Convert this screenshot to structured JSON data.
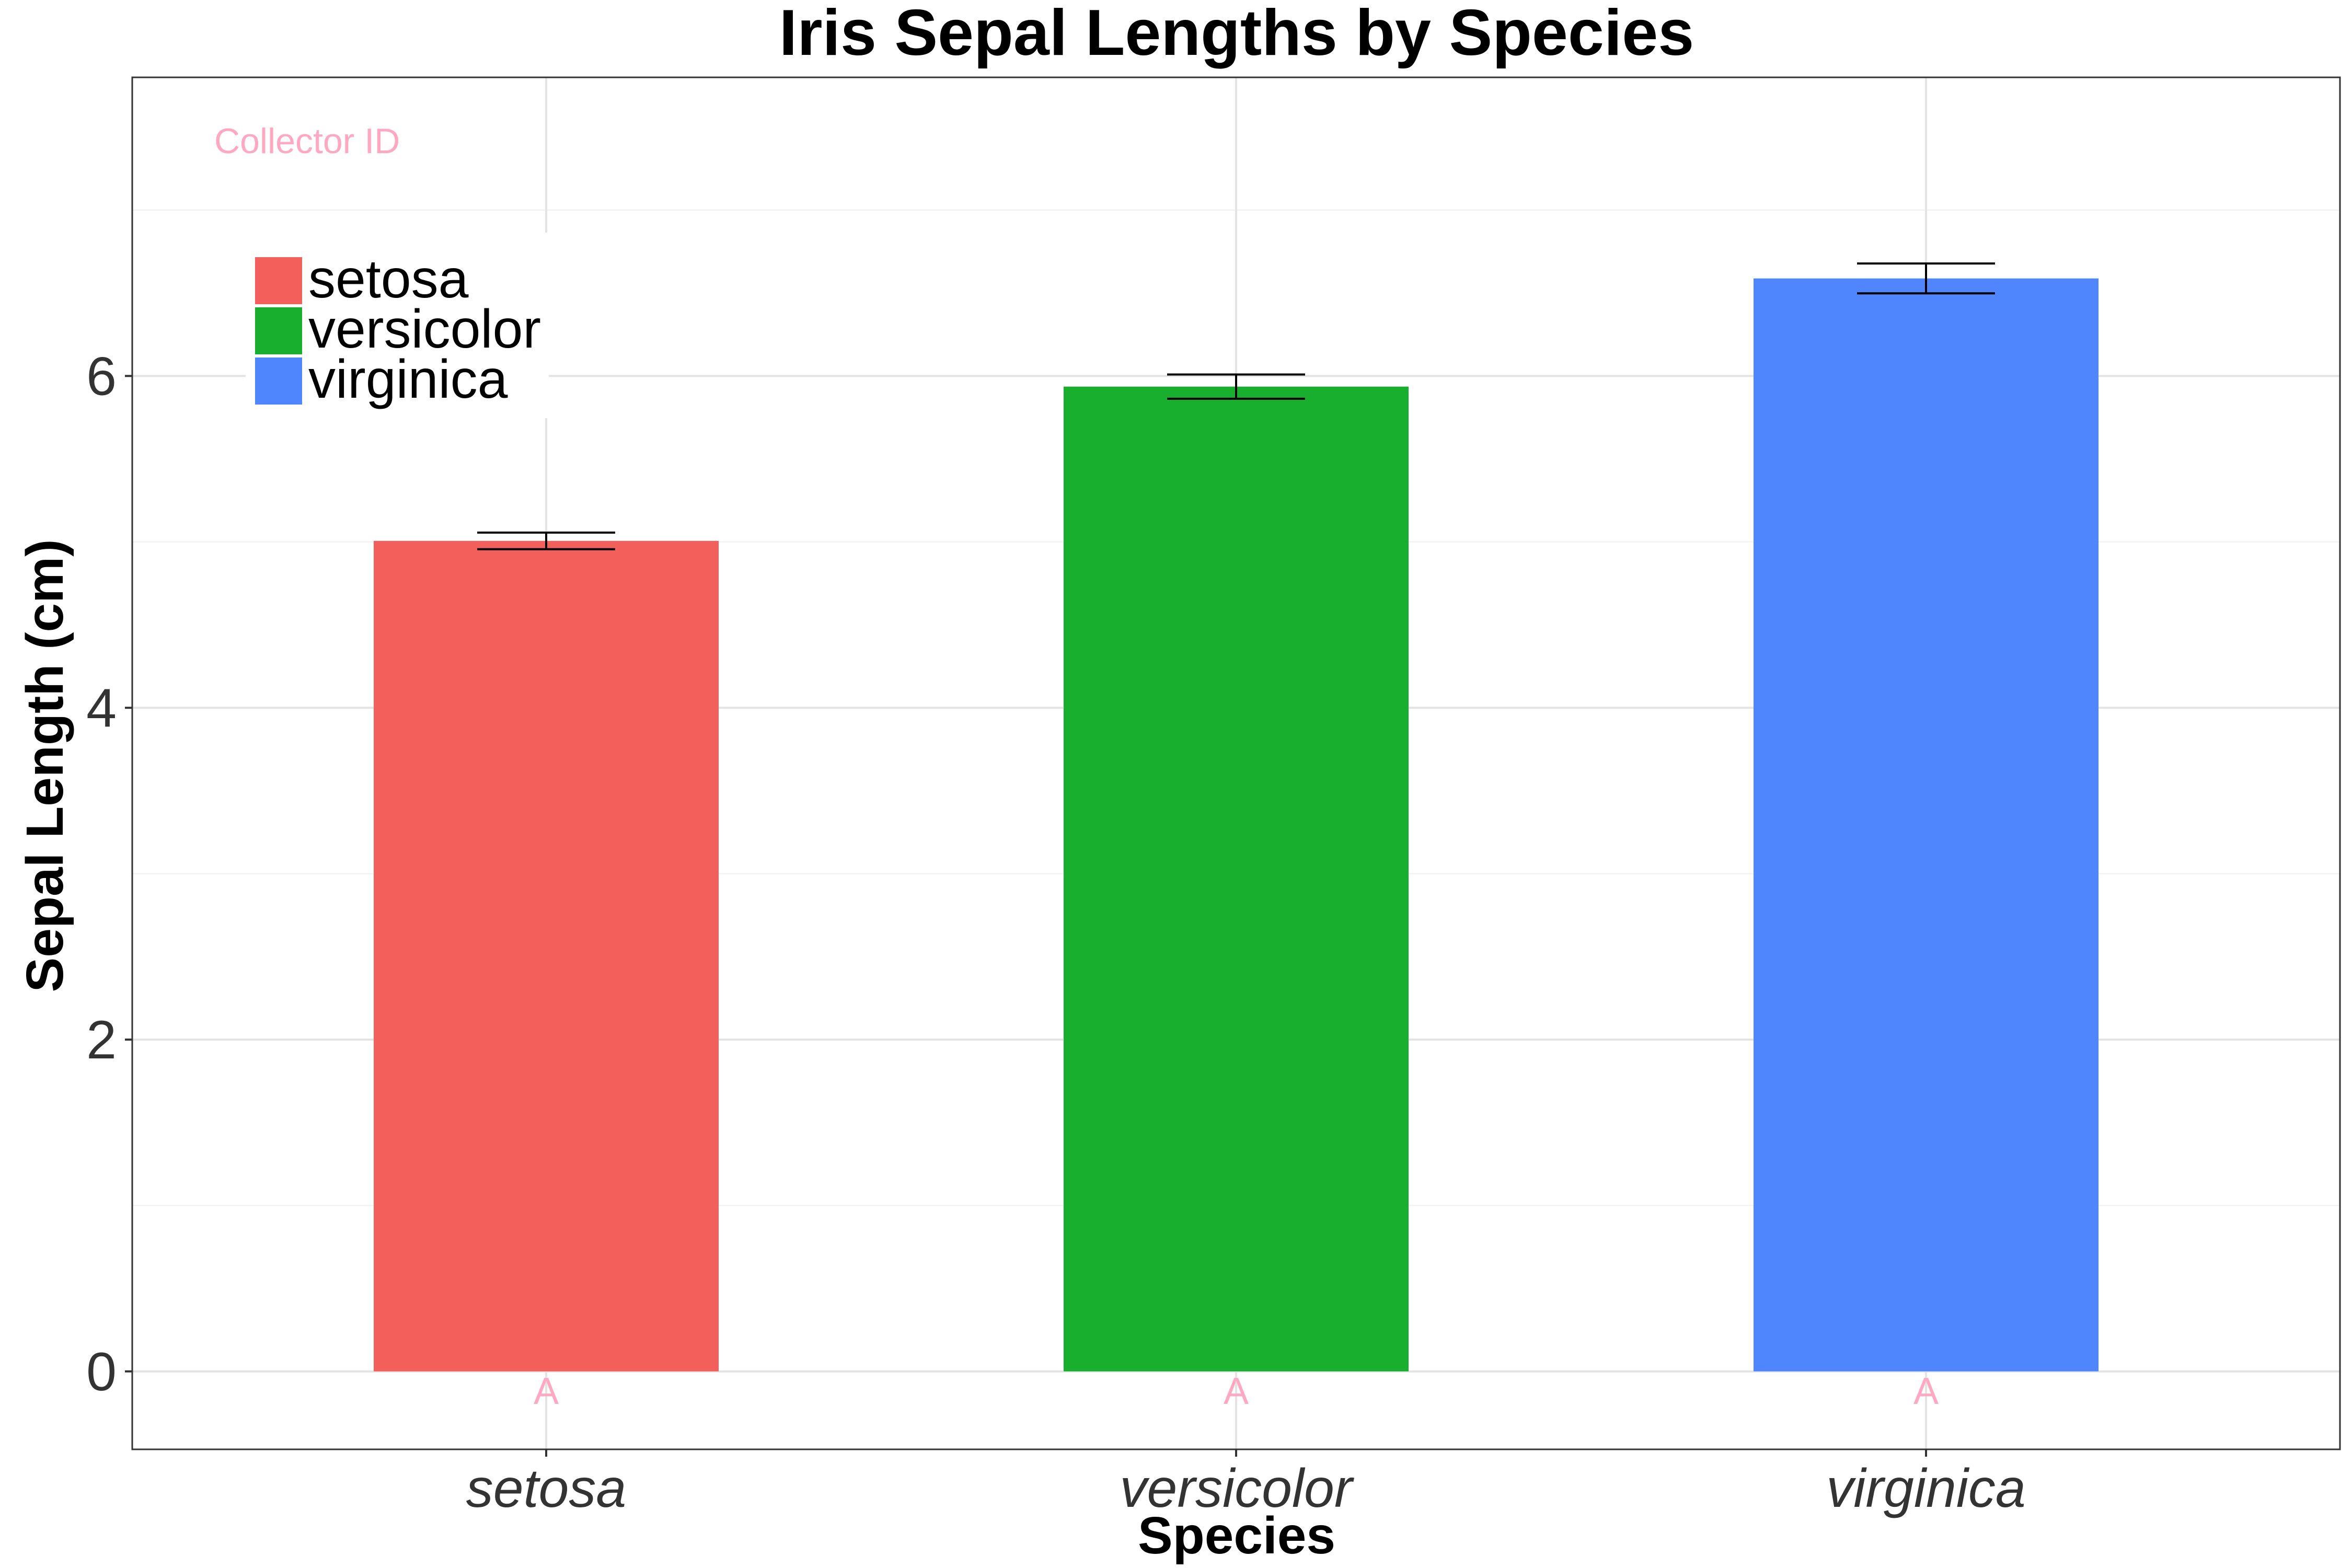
{
  "chart_data": {
    "type": "bar",
    "title": "Iris Sepal Lengths by Species",
    "xlabel": "Species",
    "ylabel": "Sepal Length (cm)",
    "categories": [
      "setosa",
      "versicolor",
      "virginica"
    ],
    "values": [
      5.006,
      5.936,
      6.588
    ],
    "error_bars": [
      {
        "low": 4.956,
        "high": 5.056
      },
      {
        "low": 5.863,
        "high": 6.009
      },
      {
        "low": 6.498,
        "high": 6.678
      }
    ],
    "bar_labels": [
      "A",
      "A",
      "A"
    ],
    "colors": [
      "#F3605C",
      "#18AF2F",
      "#4F86FE"
    ],
    "label_color": "#FFA8C2",
    "annotation": "Collector ID",
    "ylim": [
      -0.47,
      7.8
    ],
    "yticks": [
      0,
      2,
      4,
      6
    ],
    "grid": true,
    "legend": {
      "position": "top-left",
      "entries": [
        "setosa",
        "versicolor",
        "virginica"
      ]
    }
  }
}
